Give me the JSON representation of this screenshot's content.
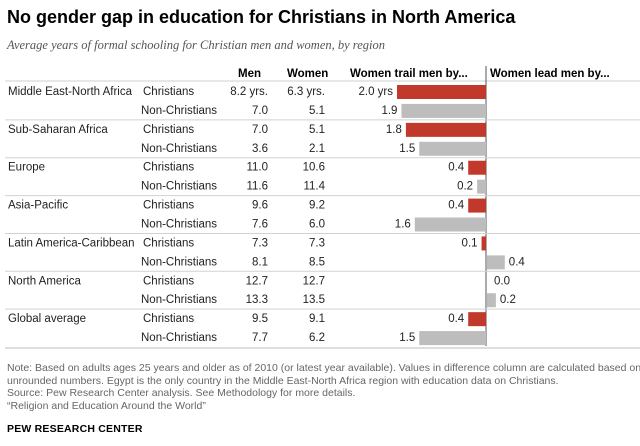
{
  "title": "No gender gap in education for Christians in North America",
  "subtitle": "Average years of formal schooling for Christian men and women, by region",
  "columns": {
    "men": "Men",
    "women": "Women",
    "trail": "Women trail men by...",
    "lead": "Women lead men by..."
  },
  "chart_data": {
    "type": "bar",
    "title": "No gender gap in education for Christians in North America",
    "bar_colors": {
      "Christians": "#c0392b",
      "Non-Christians": "#bdbdbd"
    },
    "axis_max_years": 2.0,
    "groups": [
      {
        "region": "Middle East-North Africa",
        "rows": [
          {
            "religion": "Christians",
            "men": "8.2 yrs.",
            "women": "6.3 yrs.",
            "diff": 2.0,
            "label": "2.0 yrs"
          },
          {
            "religion": "Non-Christians",
            "men": "7.0",
            "women": "5.1",
            "diff": 1.9,
            "label": "1.9"
          }
        ]
      },
      {
        "region": "Sub-Saharan Africa",
        "rows": [
          {
            "religion": "Christians",
            "men": "7.0",
            "women": "5.1",
            "diff": 1.8,
            "label": "1.8"
          },
          {
            "religion": "Non-Christians",
            "men": "3.6",
            "women": "2.1",
            "diff": 1.5,
            "label": "1.5"
          }
        ]
      },
      {
        "region": "Europe",
        "rows": [
          {
            "religion": "Christians",
            "men": "11.0",
            "women": "10.6",
            "diff": 0.4,
            "label": "0.4"
          },
          {
            "religion": "Non-Christians",
            "men": "11.6",
            "women": "11.4",
            "diff": 0.2,
            "label": "0.2"
          }
        ]
      },
      {
        "region": "Asia-Pacific",
        "rows": [
          {
            "religion": "Christians",
            "men": "9.6",
            "women": "9.2",
            "diff": 0.4,
            "label": "0.4"
          },
          {
            "religion": "Non-Christians",
            "men": "7.6",
            "women": "6.0",
            "diff": 1.6,
            "label": "1.6"
          }
        ]
      },
      {
        "region": "Latin America-Caribbean",
        "rows": [
          {
            "religion": "Christians",
            "men": "7.3",
            "women": "7.3",
            "diff": 0.1,
            "label": "0.1"
          },
          {
            "religion": "Non-Christians",
            "men": "8.1",
            "women": "8.5",
            "diff": -0.4,
            "label": "0.4"
          }
        ]
      },
      {
        "region": "North America",
        "rows": [
          {
            "religion": "Christians",
            "men": "12.7",
            "women": "12.7",
            "diff": 0.0,
            "label": "0.0"
          },
          {
            "religion": "Non-Christians",
            "men": "13.3",
            "women": "13.5",
            "diff": -0.2,
            "label": "0.2"
          }
        ]
      },
      {
        "region": "Global average",
        "rows": [
          {
            "religion": "Christians",
            "men": "9.5",
            "women": "9.1",
            "diff": 0.4,
            "label": "0.4"
          },
          {
            "religion": "Non-Christians",
            "men": "7.7",
            "women": "6.2",
            "diff": 1.5,
            "label": "1.5"
          }
        ]
      }
    ]
  },
  "notes": [
    "Note: Based on adults ages 25 years and older as of 2010 (or latest year available). Values in difference column are calculated based on",
    "unrounded numbers. Egypt is the only country in the Middle East-North Africa region with education data on Christians.",
    "Source: Pew Research Center analysis. See Methodology for more details.",
    "“Religion and Education Around the World”"
  ],
  "source_org": "PEW RESEARCH CENTER"
}
